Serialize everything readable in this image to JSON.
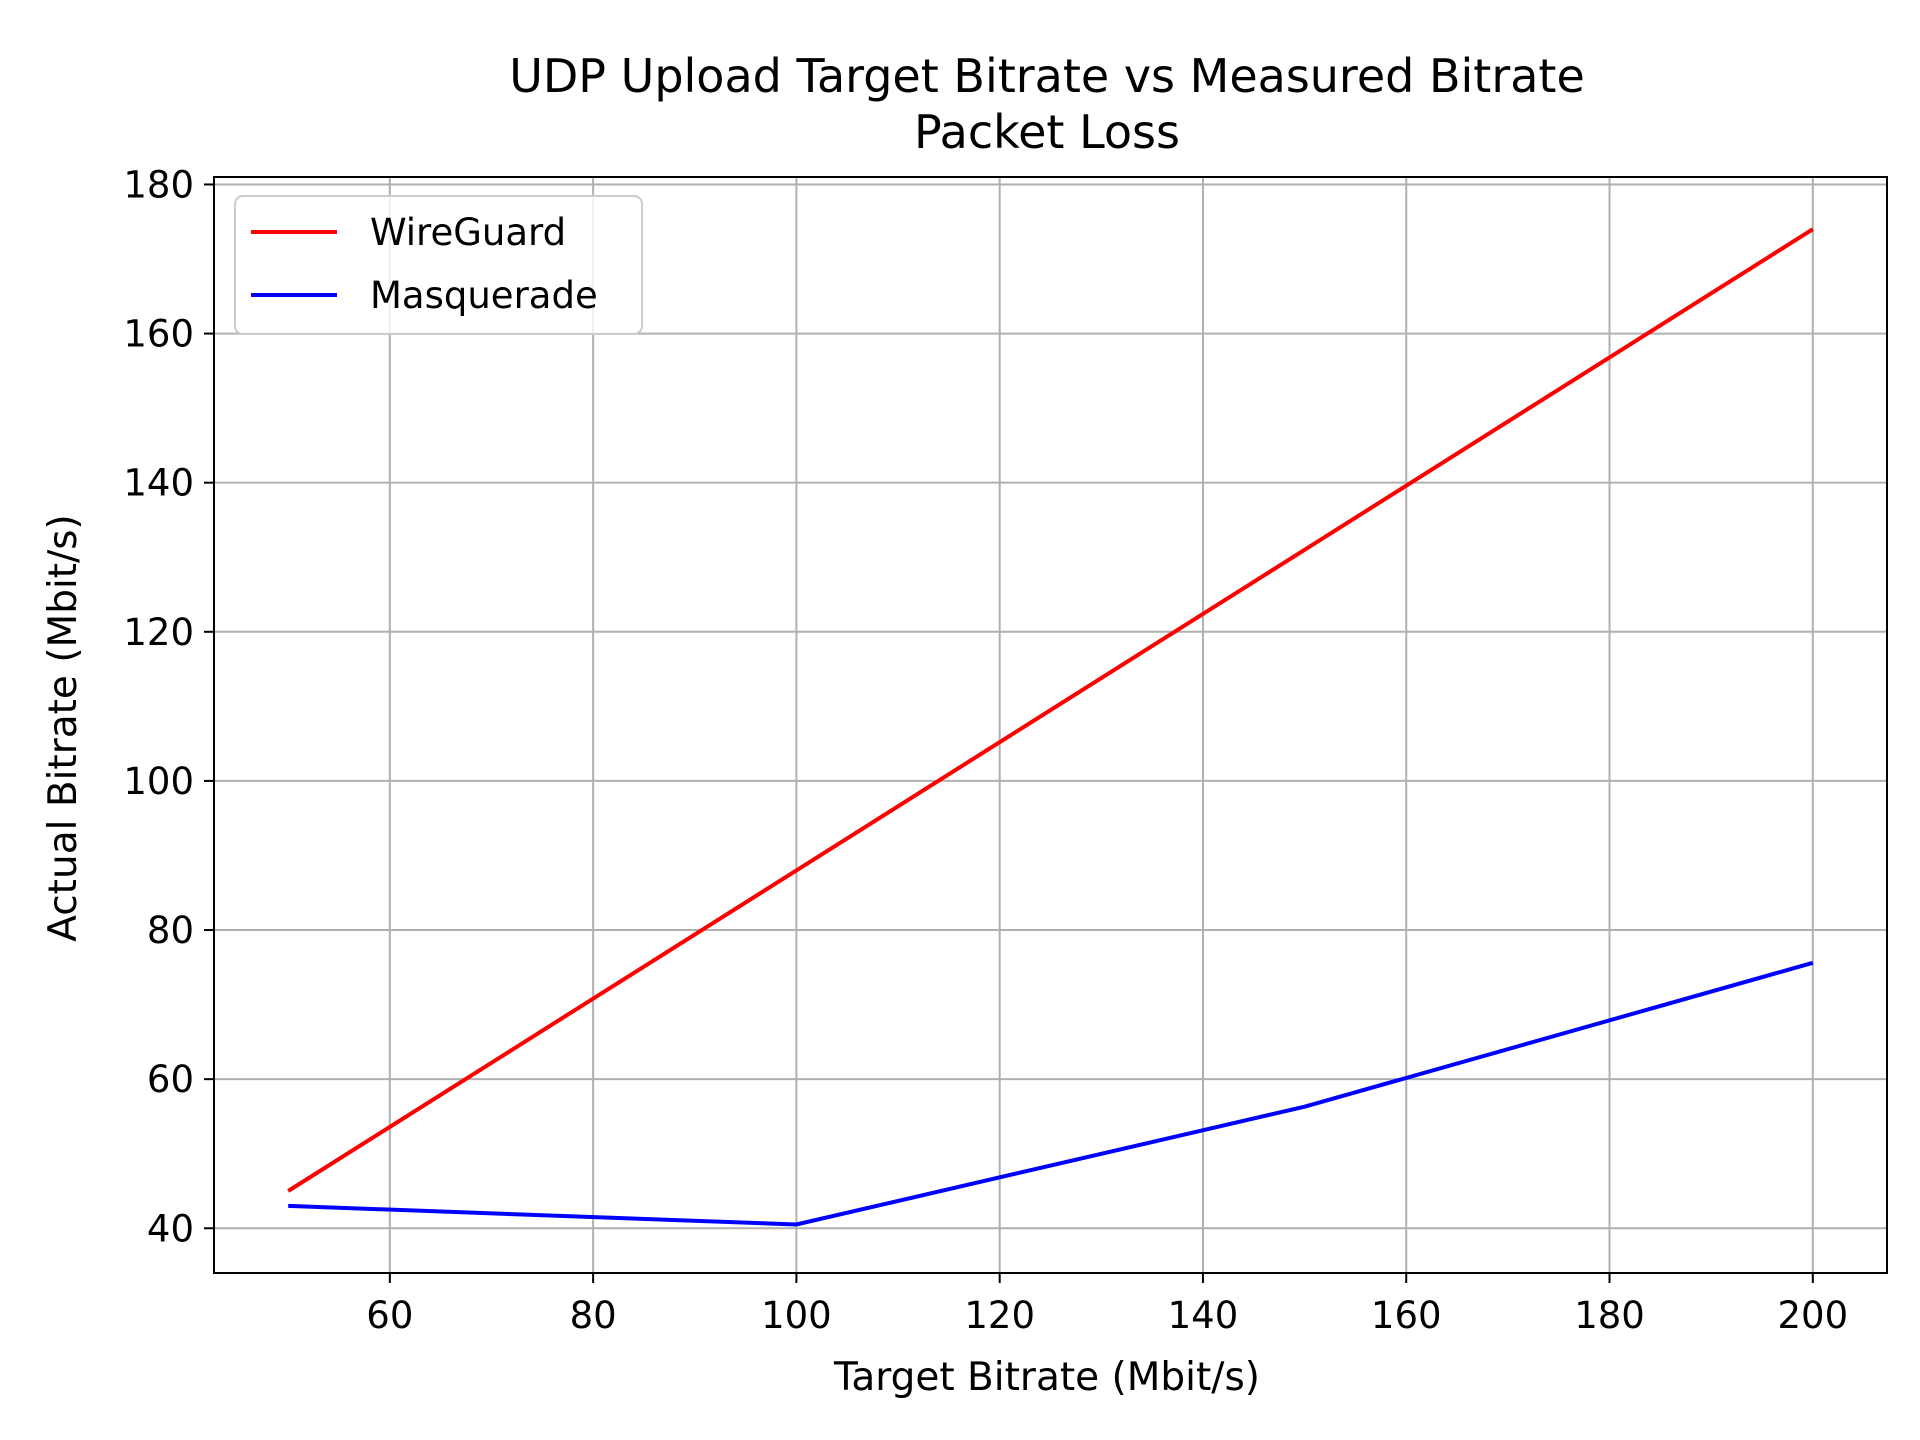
{
  "chart_data": {
    "type": "line",
    "title": "UDP Upload Target Bitrate vs Measured Bitrate",
    "subtitle": "Packet Loss",
    "xlabel": "Target Bitrate (Mbit/s)",
    "ylabel": "Actual Bitrate (Mbit/s)",
    "xlim": [
      42.7,
      207.3
    ],
    "ylim": [
      34,
      181
    ],
    "xticks": [
      60,
      80,
      100,
      120,
      140,
      160,
      180,
      200
    ],
    "yticks": [
      40,
      60,
      80,
      100,
      120,
      140,
      160,
      180
    ],
    "grid": true,
    "legend_position": "upper-left",
    "series": [
      {
        "name": "WireGuard",
        "color": "#ff0000",
        "x": [
          50,
          100,
          150,
          200
        ],
        "y": [
          45,
          88,
          131,
          174
        ]
      },
      {
        "name": "Masquerade",
        "color": "#0000ff",
        "x": [
          50,
          100,
          150,
          200
        ],
        "y": [
          43,
          40.5,
          56.3,
          75.6
        ]
      }
    ]
  }
}
